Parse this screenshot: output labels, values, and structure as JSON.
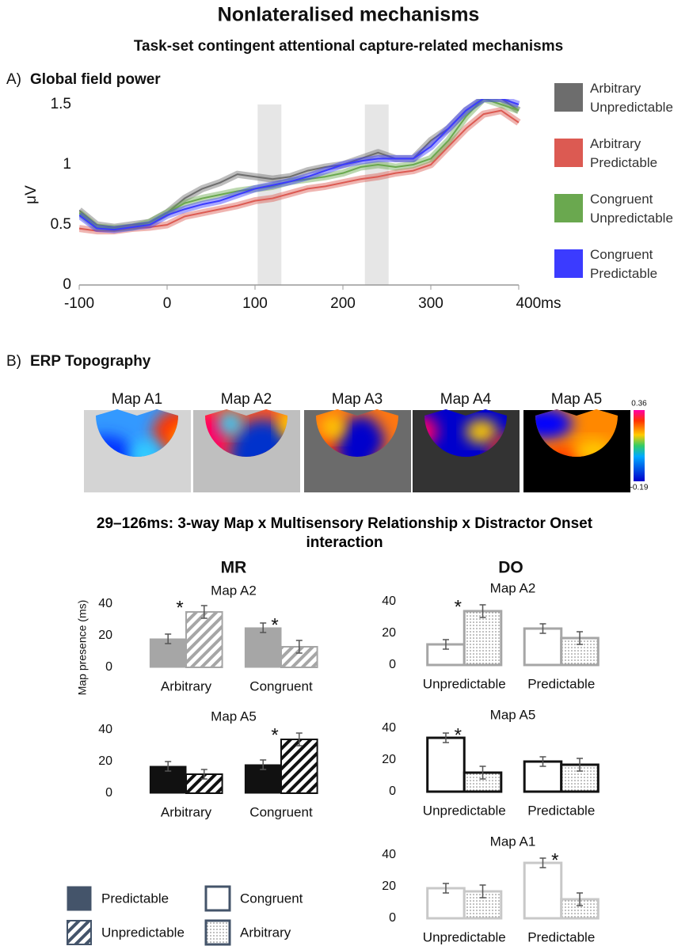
{
  "title": "Nonlateralised mechanisms",
  "subtitle": "Task-set contingent attentional capture-related mechanisms",
  "panel_a": {
    "letter": "A)",
    "label": "Global field power"
  },
  "panel_b": {
    "letter": "B)",
    "label": "ERP Topography"
  },
  "topography": {
    "maps": [
      "Map A1",
      "Map A2",
      "Map A3",
      "Map A4",
      "Map A5"
    ],
    "colorbar_max": 0.36,
    "colorbar_min": -0.19
  },
  "analysis_title": "29–126ms: 3-way Map x Multisensory Relationship x Distractor Onset interaction",
  "mr_heading": "MR",
  "do_heading": "DO",
  "legend": [
    {
      "label": "Predictable",
      "style": "solid",
      "color": "#44546a"
    },
    {
      "label": "Congruent",
      "style": "outline",
      "color": "#44546a"
    },
    {
      "label": "Unpredictable",
      "style": "hatch",
      "color": "#44546a"
    },
    {
      "label": "Arbitrary",
      "style": "dots",
      "color": "#44546a"
    }
  ],
  "chart_data": [
    {
      "type": "line",
      "ylabel": "μV",
      "x": [
        -100,
        -80,
        -60,
        -40,
        -20,
        0,
        20,
        40,
        60,
        80,
        100,
        120,
        140,
        160,
        180,
        200,
        220,
        240,
        260,
        280,
        300,
        320,
        340,
        360,
        380,
        400
      ],
      "xlim": [
        -100,
        400
      ],
      "xticks": [
        -100,
        0,
        100,
        200,
        300,
        {
          "value": 400,
          "label": "400ms"
        }
      ],
      "ylim": [
        0,
        1.5
      ],
      "yticks": [
        0,
        0.5,
        1,
        1.5
      ],
      "highlights": [
        [
          103,
          130
        ],
        [
          225,
          252
        ]
      ],
      "series": [
        {
          "name": "Arbitrary Unpredictable",
          "color": "#6d6d6d",
          "values": [
            0.62,
            0.5,
            0.48,
            0.5,
            0.52,
            0.6,
            0.72,
            0.8,
            0.85,
            0.92,
            0.9,
            0.88,
            0.9,
            0.95,
            0.98,
            1.0,
            1.05,
            1.1,
            1.05,
            1.05,
            1.2,
            1.3,
            1.45,
            1.55,
            1.55,
            1.45
          ]
        },
        {
          "name": "Arbitrary Predictable",
          "color": "#dc5a52",
          "values": [
            0.47,
            0.45,
            0.45,
            0.47,
            0.48,
            0.5,
            0.57,
            0.6,
            0.63,
            0.66,
            0.7,
            0.72,
            0.76,
            0.8,
            0.82,
            0.85,
            0.88,
            0.9,
            0.93,
            0.95,
            1.0,
            1.15,
            1.3,
            1.42,
            1.45,
            1.35
          ]
        },
        {
          "name": "Congruent Unpredictable",
          "color": "#6aa84f",
          "values": [
            0.6,
            0.48,
            0.47,
            0.48,
            0.52,
            0.6,
            0.68,
            0.72,
            0.75,
            0.78,
            0.8,
            0.82,
            0.86,
            0.88,
            0.9,
            0.93,
            0.98,
            1.0,
            0.98,
            1.0,
            1.05,
            1.2,
            1.4,
            1.55,
            1.5,
            1.45
          ]
        },
        {
          "name": "Congruent Predictable",
          "color": "#3b3bff",
          "values": [
            0.58,
            0.47,
            0.46,
            0.48,
            0.5,
            0.58,
            0.63,
            0.67,
            0.7,
            0.75,
            0.8,
            0.83,
            0.86,
            0.9,
            0.95,
            1.0,
            1.03,
            1.05,
            1.05,
            1.05,
            1.15,
            1.3,
            1.45,
            1.55,
            1.55,
            1.5
          ]
        }
      ]
    },
    {
      "type": "bar",
      "title": "Map A2",
      "ylabel": "Map presence (ms)",
      "categories": [
        "Arbitrary",
        "Congruent"
      ],
      "ylim": [
        0,
        40
      ],
      "yticks": [
        0,
        20,
        40
      ],
      "series": [
        {
          "name": "Predictable",
          "color": "#a6a6a6",
          "pattern": "solid",
          "values": [
            18,
            25
          ],
          "errors": [
            3,
            3
          ]
        },
        {
          "name": "Unpredictable",
          "color": "#a6a6a6",
          "pattern": "hatch",
          "values": [
            35,
            13
          ],
          "errors": [
            4,
            4
          ]
        }
      ],
      "annotations": [
        {
          "text": "*",
          "category": "Arbitrary"
        },
        {
          "text": "*",
          "category": "Congruent"
        }
      ]
    },
    {
      "type": "bar",
      "title": "Map A5",
      "categories": [
        "Arbitrary",
        "Congruent"
      ],
      "ylim": [
        0,
        40
      ],
      "yticks": [
        0,
        20,
        40
      ],
      "series": [
        {
          "name": "Predictable",
          "color": "#111111",
          "pattern": "solid",
          "values": [
            17,
            18
          ],
          "errors": [
            3,
            3
          ]
        },
        {
          "name": "Unpredictable",
          "color": "#111111",
          "pattern": "hatch",
          "values": [
            12,
            34
          ],
          "errors": [
            3,
            4
          ]
        }
      ],
      "annotations": [
        {
          "text": "*",
          "category": "Congruent"
        }
      ]
    },
    {
      "type": "bar",
      "title": "Map A2",
      "categories": [
        "Unpredictable",
        "Predictable"
      ],
      "ylim": [
        0,
        40
      ],
      "yticks": [
        0,
        20,
        40
      ],
      "series": [
        {
          "name": "Congruent",
          "color": "#a6a6a6",
          "pattern": "outline",
          "values": [
            13,
            23
          ],
          "errors": [
            3,
            3
          ]
        },
        {
          "name": "Arbitrary",
          "color": "#a6a6a6",
          "pattern": "dots",
          "values": [
            34,
            17
          ],
          "errors": [
            4,
            4
          ]
        }
      ],
      "annotations": [
        {
          "text": "*",
          "category": "Unpredictable"
        }
      ]
    },
    {
      "type": "bar",
      "title": "Map A5",
      "categories": [
        "Unpredictable",
        "Predictable"
      ],
      "ylim": [
        0,
        40
      ],
      "yticks": [
        0,
        20,
        40
      ],
      "series": [
        {
          "name": "Congruent",
          "color": "#111111",
          "pattern": "outline",
          "values": [
            34,
            19
          ],
          "errors": [
            3,
            3
          ]
        },
        {
          "name": "Arbitrary",
          "color": "#111111",
          "pattern": "dots",
          "values": [
            12,
            17
          ],
          "errors": [
            4,
            4
          ]
        }
      ],
      "annotations": [
        {
          "text": "*",
          "category": "Unpredictable"
        }
      ]
    },
    {
      "type": "bar",
      "title": "Map A1",
      "categories": [
        "Unpredictable",
        "Predictable"
      ],
      "ylim": [
        0,
        40
      ],
      "yticks": [
        0,
        20,
        40
      ],
      "series": [
        {
          "name": "Congruent",
          "color": "#c8c8c8",
          "pattern": "outline",
          "values": [
            19,
            35
          ],
          "errors": [
            3,
            3
          ]
        },
        {
          "name": "Arbitrary",
          "color": "#c8c8c8",
          "pattern": "dots",
          "values": [
            17,
            12
          ],
          "errors": [
            4,
            4
          ]
        }
      ],
      "annotations": [
        {
          "text": "*",
          "category": "Predictable"
        }
      ]
    }
  ]
}
